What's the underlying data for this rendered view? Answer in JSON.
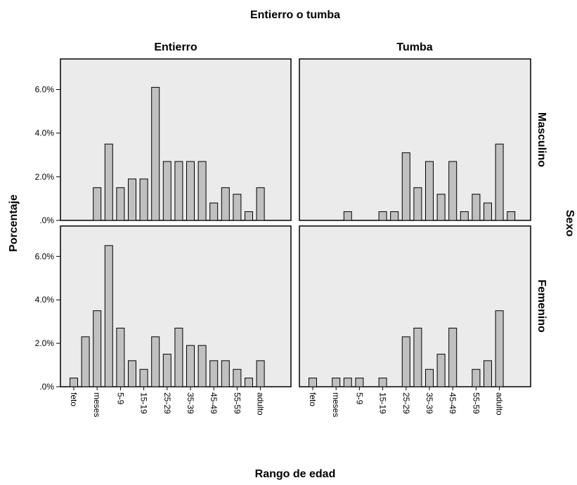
{
  "chart_data": {
    "type": "bar",
    "title": "Entierro o tumba",
    "column_labels": [
      "Entierro",
      "Tumba"
    ],
    "row_title": "Sexo",
    "row_labels": [
      "Masculino",
      "Femenino"
    ],
    "x_label": "Rango de edad",
    "y_label": "Porcentaje",
    "categories": [
      "feto",
      null,
      "meses",
      null,
      "5-9",
      null,
      "15-19",
      null,
      "25-29",
      null,
      "35-39",
      null,
      "45-49",
      null,
      "55-59",
      null,
      "adulto",
      null
    ],
    "values": [
      [
        [
          0,
          0,
          1.5,
          3.5,
          1.5,
          1.9,
          1.9,
          6.1,
          2.7,
          2.7,
          2.7,
          2.7,
          0.8,
          1.5,
          1.2,
          0.4,
          1.5,
          0
        ],
        [
          0,
          0,
          0,
          0.4,
          0,
          0,
          0.4,
          0.4,
          3.1,
          1.5,
          2.7,
          1.2,
          2.7,
          0.4,
          1.2,
          0.8,
          3.5,
          0.4
        ]
      ],
      [
        [
          0.4,
          2.3,
          3.5,
          6.5,
          2.7,
          1.2,
          0.8,
          2.3,
          1.5,
          2.7,
          1.9,
          1.9,
          1.2,
          1.2,
          0.8,
          0.4,
          1.2,
          0
        ],
        [
          0.4,
          0,
          0.4,
          0.4,
          0.4,
          0,
          0.4,
          0,
          2.3,
          2.7,
          0.8,
          1.5,
          2.7,
          0,
          0.8,
          1.2,
          3.5,
          0
        ]
      ]
    ],
    "ylim": [
      0,
      7.4
    ],
    "yticks": [
      {
        "value": 0,
        "label": ".0%"
      },
      {
        "value": 2,
        "label": "2.0%"
      },
      {
        "value": 4,
        "label": "4.0%"
      },
      {
        "value": 6,
        "label": "6.0%"
      }
    ],
    "color": "#c0c0c0",
    "panel_color": "#ebebeb"
  }
}
